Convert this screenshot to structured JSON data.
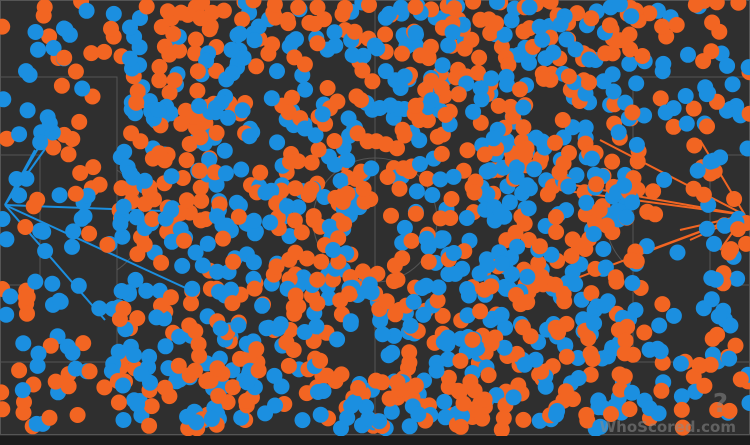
{
  "pitch": {
    "background": "#2f2f2f",
    "line_color": "#555555"
  },
  "teams": [
    {
      "color": "#f26522"
    },
    {
      "color": "#1b8fe0"
    }
  ],
  "watermark": {
    "text": "WhoScored.com",
    "icon": "question-mark-logo-icon"
  }
}
